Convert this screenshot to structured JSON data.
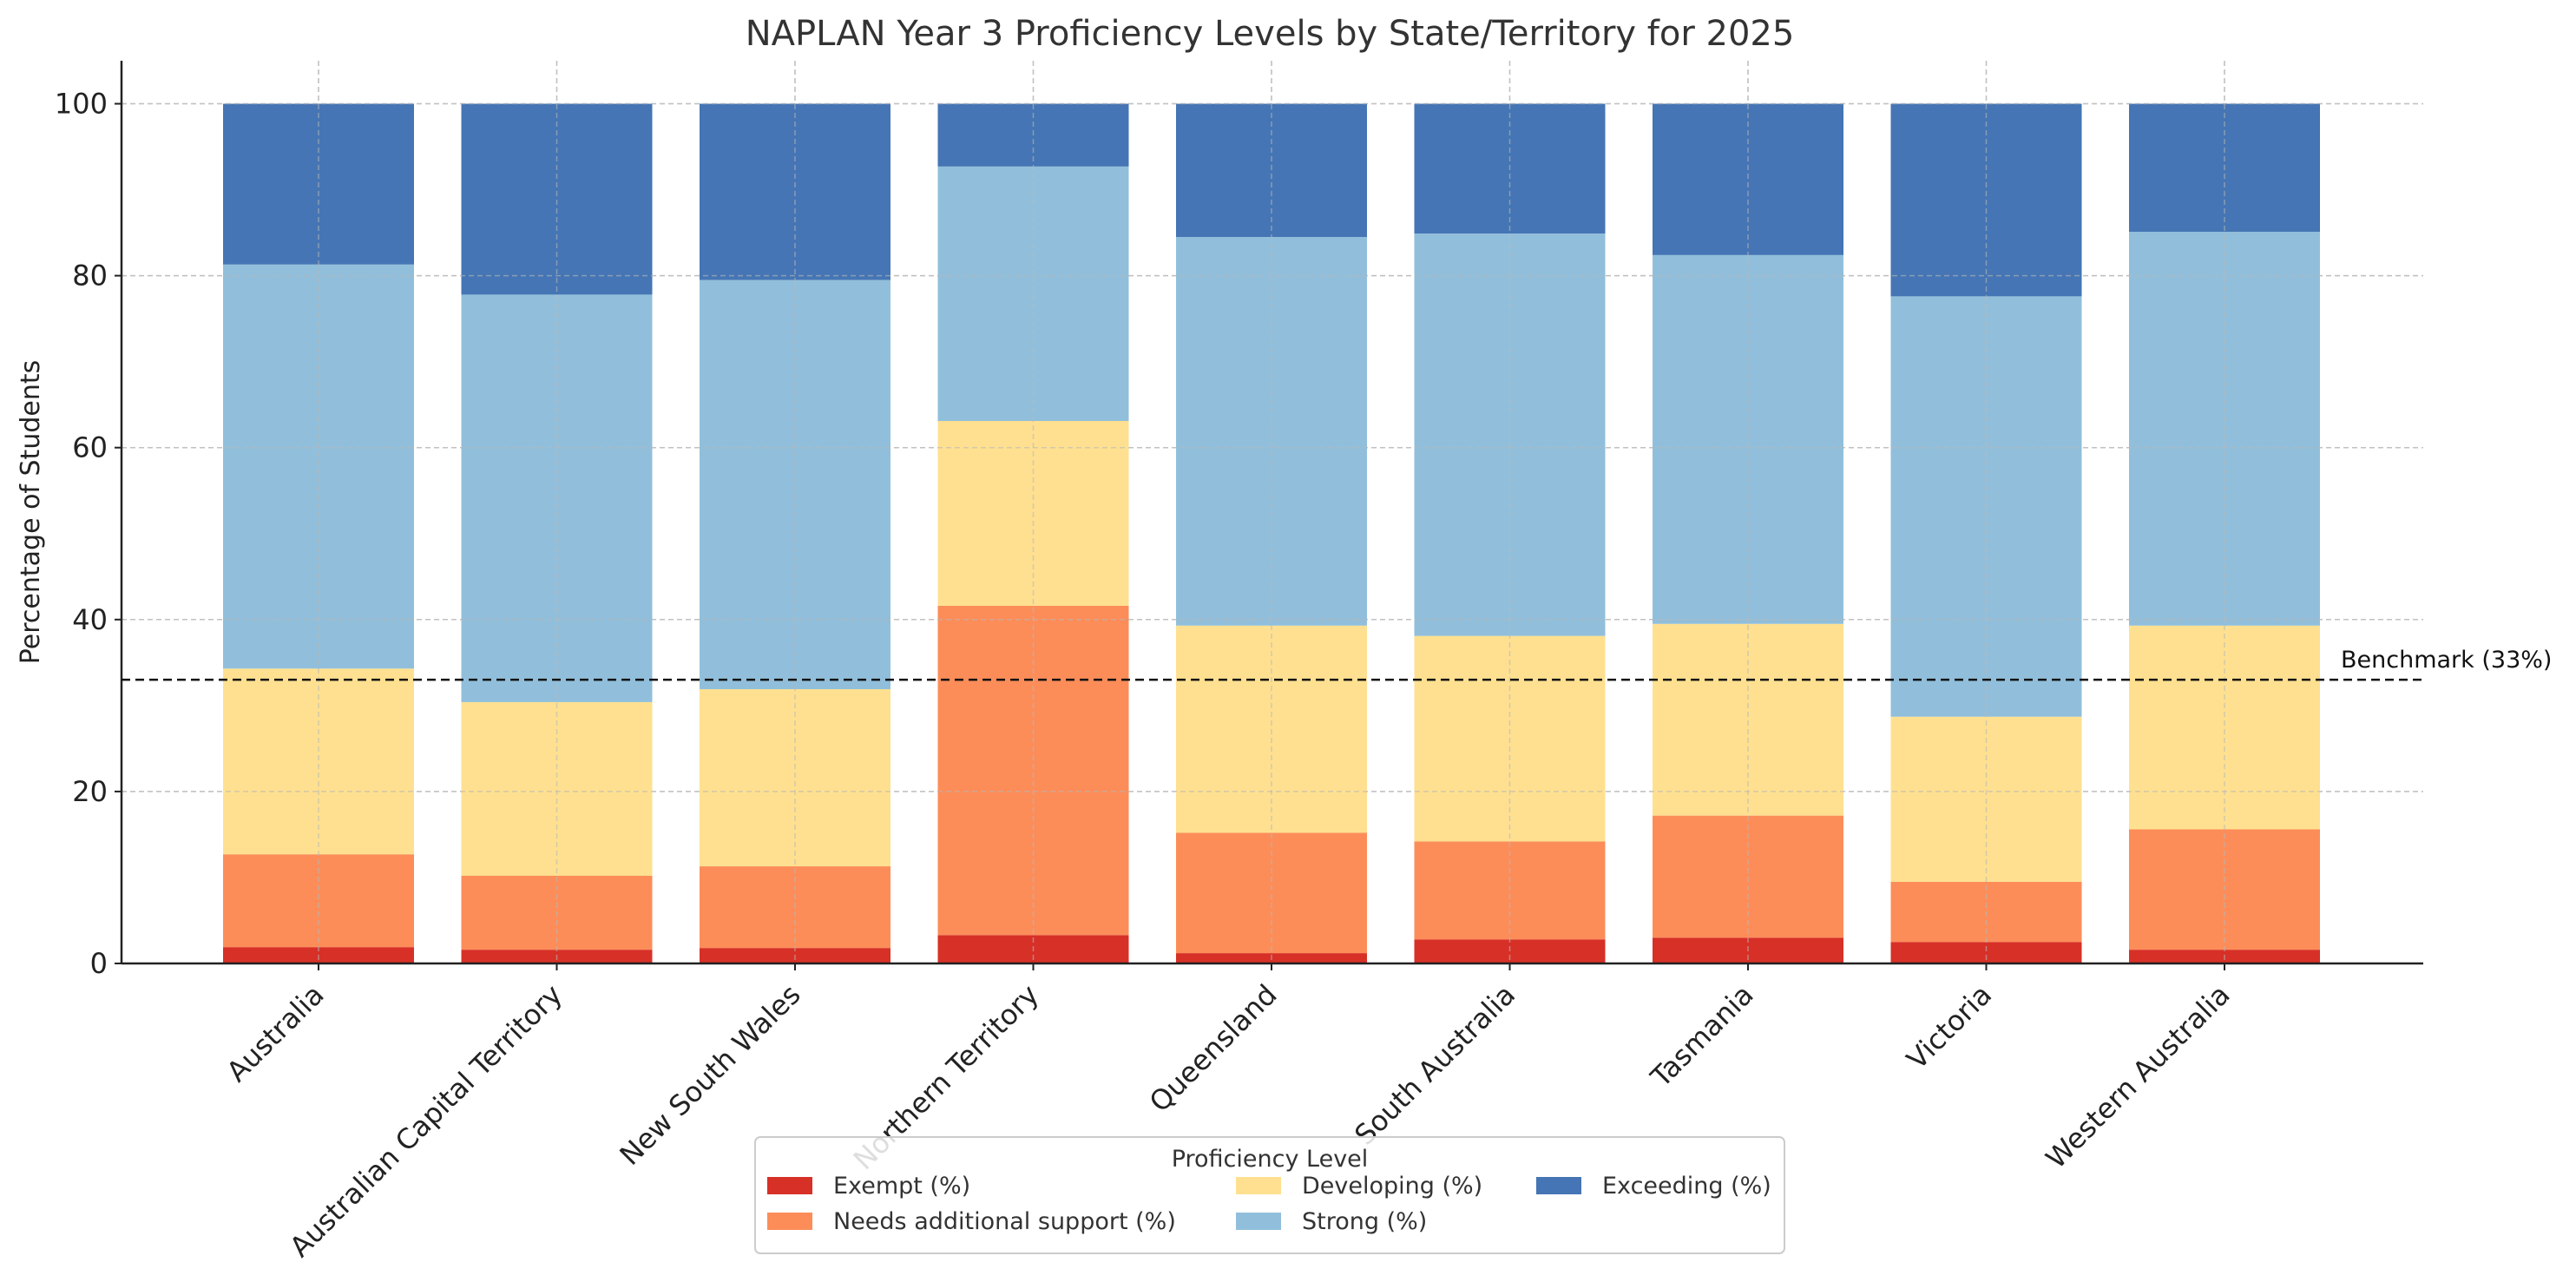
{
  "chart_data": {
    "type": "bar",
    "stacked": true,
    "title": "NAPLAN Year 3 Proficiency Levels by State/Territory for 2025",
    "xlabel": "",
    "ylabel": "Percentage of Students",
    "ylim": [
      0,
      105
    ],
    "yticks": [
      0,
      20,
      40,
      60,
      80,
      100
    ],
    "grid": true,
    "categories": [
      "Australia",
      "Australian Capital Territory",
      "New South Wales",
      "Northern Territory",
      "Queensland",
      "South Australia",
      "Tasmania",
      "Victoria",
      "Western Australia"
    ],
    "series": [
      {
        "name": "Exempt (%)",
        "color": "#d73027",
        "values": [
          1.9,
          1.6,
          1.8,
          3.3,
          1.2,
          2.8,
          3.0,
          2.5,
          1.6
        ]
      },
      {
        "name": "Needs additional support (%)",
        "color": "#fc8d59",
        "values": [
          10.8,
          8.6,
          9.5,
          38.3,
          14.0,
          11.4,
          14.2,
          7.0,
          14.0
        ]
      },
      {
        "name": "Developing (%)",
        "color": "#fee090",
        "values": [
          21.6,
          20.2,
          20.6,
          21.5,
          24.1,
          23.9,
          22.3,
          19.2,
          23.7
        ]
      },
      {
        "name": "Strong (%)",
        "color": "#91bfdb",
        "values": [
          47.0,
          47.4,
          47.6,
          29.6,
          45.2,
          46.8,
          42.9,
          48.9,
          45.8
        ]
      },
      {
        "name": "Exceeding (%)",
        "color": "#4575b4",
        "values": [
          18.7,
          22.2,
          20.5,
          7.3,
          15.5,
          15.1,
          17.6,
          22.4,
          14.9
        ]
      }
    ],
    "benchmark": {
      "value": 33,
      "label": "Benchmark (33%)"
    },
    "legend": {
      "title": "Proficiency Level",
      "position": "bottom-center",
      "columns": 3
    }
  }
}
